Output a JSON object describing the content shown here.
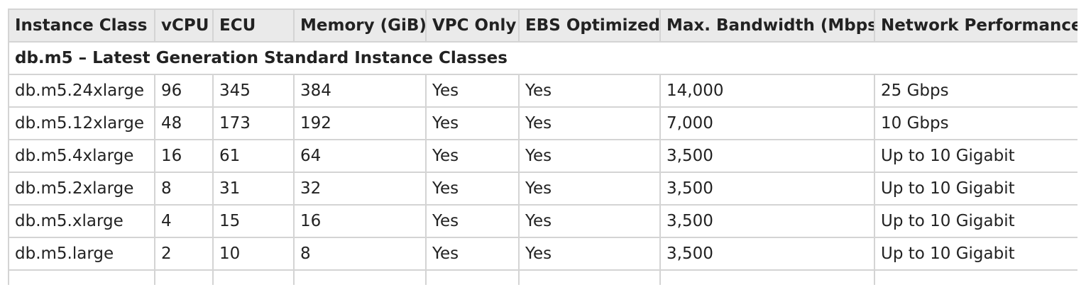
{
  "table": {
    "columns": [
      "Instance Class",
      "vCPU",
      "ECU",
      "Memory (GiB)",
      "VPC Only",
      "EBS Optimized",
      "Max. Bandwidth (Mbps)",
      "Network Performance"
    ],
    "group_label": "db.m5 – Latest Generation Standard Instance Classes",
    "rows": [
      [
        "db.m5.24xlarge",
        "96",
        "345",
        "384",
        "Yes",
        "Yes",
        "14,000",
        "25 Gbps"
      ],
      [
        "db.m5.12xlarge",
        "48",
        "173",
        "192",
        "Yes",
        "Yes",
        "7,000",
        "10 Gbps"
      ],
      [
        "db.m5.4xlarge",
        "16",
        "61",
        "64",
        "Yes",
        "Yes",
        "3,500",
        "Up to 10 Gigabit"
      ],
      [
        "db.m5.2xlarge",
        "8",
        "31",
        "32",
        "Yes",
        "Yes",
        "3,500",
        "Up to 10 Gigabit"
      ],
      [
        "db.m5.xlarge",
        "4",
        "15",
        "16",
        "Yes",
        "Yes",
        "3,500",
        "Up to 10 Gigabit"
      ],
      [
        "db.m5.large",
        "2",
        "10",
        "8",
        "Yes",
        "Yes",
        "3,500",
        "Up to 10 Gigabit"
      ]
    ]
  }
}
